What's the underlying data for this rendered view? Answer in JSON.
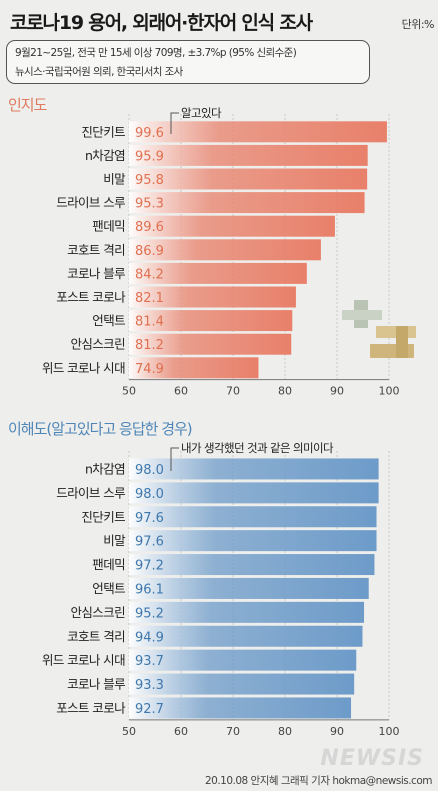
{
  "title": "코로나19 용어, 외래어·한자어 인식 조사",
  "unit": "단위:%",
  "info": {
    "line1": "9월21~25일,  전국 만 15세 이상 709명, ±3.7%p (95% 신뢰수준)",
    "line2": "뉴시스·국립국어원 의뢰, 한국리서치 조사"
  },
  "chart_data": [
    {
      "type": "bar",
      "title": "인지도",
      "annotation": "알고있다",
      "categories": [
        "진단키트",
        "n차감염",
        "비말",
        "드라이브 스루",
        "팬데믹",
        "코호트 격리",
        "코로나 블루",
        "포스트 코로나",
        "언택트",
        "안심스크린",
        "위드 코로나 시대"
      ],
      "values": [
        99.6,
        95.9,
        95.8,
        95.3,
        89.6,
        86.9,
        84.2,
        82.1,
        81.4,
        81.2,
        74.9
      ],
      "value_labels": [
        "99.6",
        "95.9",
        "95.8",
        "95.3",
        "89.6",
        "86.9",
        "84.2",
        "82.1",
        "81.4",
        "81.2",
        "74.9"
      ],
      "xlim": [
        50,
        100
      ],
      "ticks": [
        "50",
        "60",
        "70",
        "80",
        "90",
        "100"
      ],
      "color": "#e8806a"
    },
    {
      "type": "bar",
      "title": "이해도(알고있다고 응답한 경우)",
      "annotation": "내가 생각했던 것과 같은 의미이다",
      "categories": [
        "n차감염",
        "드라이브 스루",
        "진단키트",
        "비말",
        "팬데믹",
        "언택트",
        "안심스크린",
        "코호트 격리",
        "위드 코로나 시대",
        "코로나 블루",
        "포스트 코로나"
      ],
      "values": [
        98.0,
        98.0,
        97.6,
        97.6,
        97.2,
        96.1,
        95.2,
        94.9,
        93.7,
        93.3,
        92.7
      ],
      "value_labels": [
        "98.0",
        "98.0",
        "97.6",
        "97.6",
        "97.2",
        "96.1",
        "95.2",
        "94.9",
        "93.7",
        "93.3",
        "92.7"
      ],
      "xlim": [
        50,
        100
      ],
      "ticks": [
        "50",
        "60",
        "70",
        "80",
        "90",
        "100"
      ],
      "color": "#6d9bc9"
    }
  ],
  "footer": "20.10.08 안지혜 그래픽 기자  hokma@newsis.com",
  "watermark": "NEWSIS",
  "colors": {
    "accent1": "#e07a5f",
    "accent2": "#4f86b8"
  }
}
